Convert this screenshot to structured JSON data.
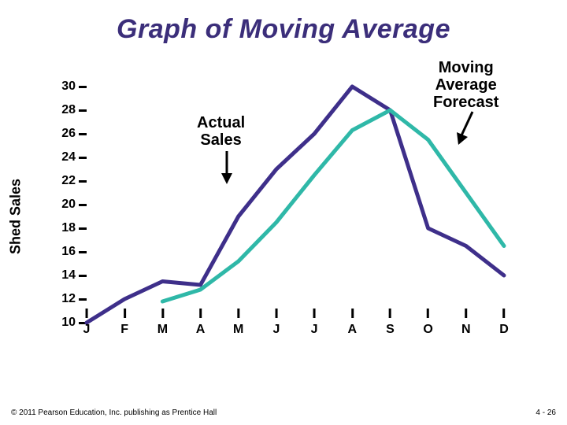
{
  "slide": {
    "title": "Graph of Moving Average",
    "title_color": "#3b2e7a",
    "title_fontsize": 34
  },
  "chart": {
    "type": "line",
    "y_axis": {
      "label": "Shed Sales",
      "label_fontsize": 18,
      "ticks": [
        30,
        28,
        26,
        24,
        22,
        20,
        18,
        16,
        14,
        12,
        10
      ],
      "tick_fontsize": 16,
      "range_min": 10,
      "range_max": 30
    },
    "x_axis": {
      "categories": [
        "J",
        "F",
        "M",
        "A",
        "M",
        "J",
        "J",
        "A",
        "S",
        "O",
        "N",
        "D"
      ],
      "tick_fontsize": 16
    },
    "series": {
      "actual": {
        "label": "Actual Sales",
        "color": "#3e2f8a",
        "line_width": 5,
        "values": [
          10,
          12,
          13.5,
          13.2,
          19,
          23,
          26,
          30,
          28,
          18,
          16.5,
          14
        ]
      },
      "forecast": {
        "label": "Moving Average Forecast",
        "color": "#2fb8a8",
        "line_width": 5,
        "start_index": 2,
        "values": [
          11.8,
          12.8,
          15.2,
          18.5,
          22.5,
          26.3,
          28,
          25.5,
          21,
          16.5
        ]
      }
    },
    "annotations": {
      "actual_label": {
        "text_line1": "Actual",
        "text_line2": "Sales",
        "fontsize": 20
      },
      "forecast_label": {
        "text_line1": "Moving",
        "text_line2": "Average",
        "text_line3": "Forecast",
        "fontsize": 20
      }
    },
    "background_color": "#ffffff"
  },
  "footer": {
    "copyright": "© 2011 Pearson Education, Inc. publishing as Prentice Hall",
    "page": "4 - 26",
    "fontsize": 10,
    "color": "#000000"
  }
}
